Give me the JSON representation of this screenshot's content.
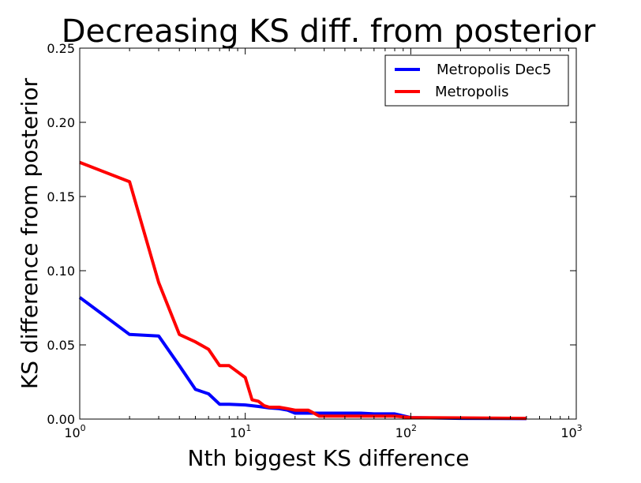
{
  "chart_data": {
    "type": "line",
    "title": "Decreasing KS diff. from posterior",
    "xlabel": "Nth biggest KS difference",
    "ylabel": "KS difference from posterior",
    "xscale": "log",
    "xlim": [
      1,
      1000
    ],
    "ylim": [
      0,
      0.25
    ],
    "xticks": [
      {
        "base": "10",
        "exp": "0",
        "value": 1
      },
      {
        "base": "10",
        "exp": "1",
        "value": 10
      },
      {
        "base": "10",
        "exp": "2",
        "value": 100
      },
      {
        "base": "10",
        "exp": "3",
        "value": 1000
      }
    ],
    "yticks": [
      "0.00",
      "0.05",
      "0.10",
      "0.15",
      "0.20",
      "0.25"
    ],
    "grid": false,
    "legend_position": "top-right",
    "series": [
      {
        "name": "Metropolis Dec5",
        "color": "#0000ff",
        "x": [
          1,
          2,
          3,
          4,
          5,
          6,
          7,
          8,
          10,
          12,
          14,
          16,
          18,
          20,
          25,
          30,
          40,
          50,
          60,
          80,
          100,
          200,
          500
        ],
        "y": [
          0.082,
          0.057,
          0.056,
          0.036,
          0.02,
          0.017,
          0.01,
          0.01,
          0.0095,
          0.0085,
          0.0075,
          0.007,
          0.006,
          0.004,
          0.004,
          0.004,
          0.004,
          0.004,
          0.0035,
          0.0035,
          0.001,
          0.0005,
          0.0003
        ]
      },
      {
        "name": "Metropolis",
        "color": "#ff0000",
        "x": [
          1,
          2,
          3,
          4,
          5,
          6,
          7,
          8,
          10,
          11,
          12,
          13,
          14,
          16,
          18,
          20,
          24,
          26,
          28,
          40,
          60,
          80,
          90,
          100,
          200,
          500
        ],
        "y": [
          0.173,
          0.16,
          0.092,
          0.057,
          0.052,
          0.047,
          0.036,
          0.036,
          0.028,
          0.013,
          0.012,
          0.009,
          0.008,
          0.008,
          0.007,
          0.006,
          0.006,
          0.004,
          0.002,
          0.002,
          0.002,
          0.002,
          0.0015,
          0.001,
          0.0008,
          0.0005
        ]
      }
    ]
  }
}
